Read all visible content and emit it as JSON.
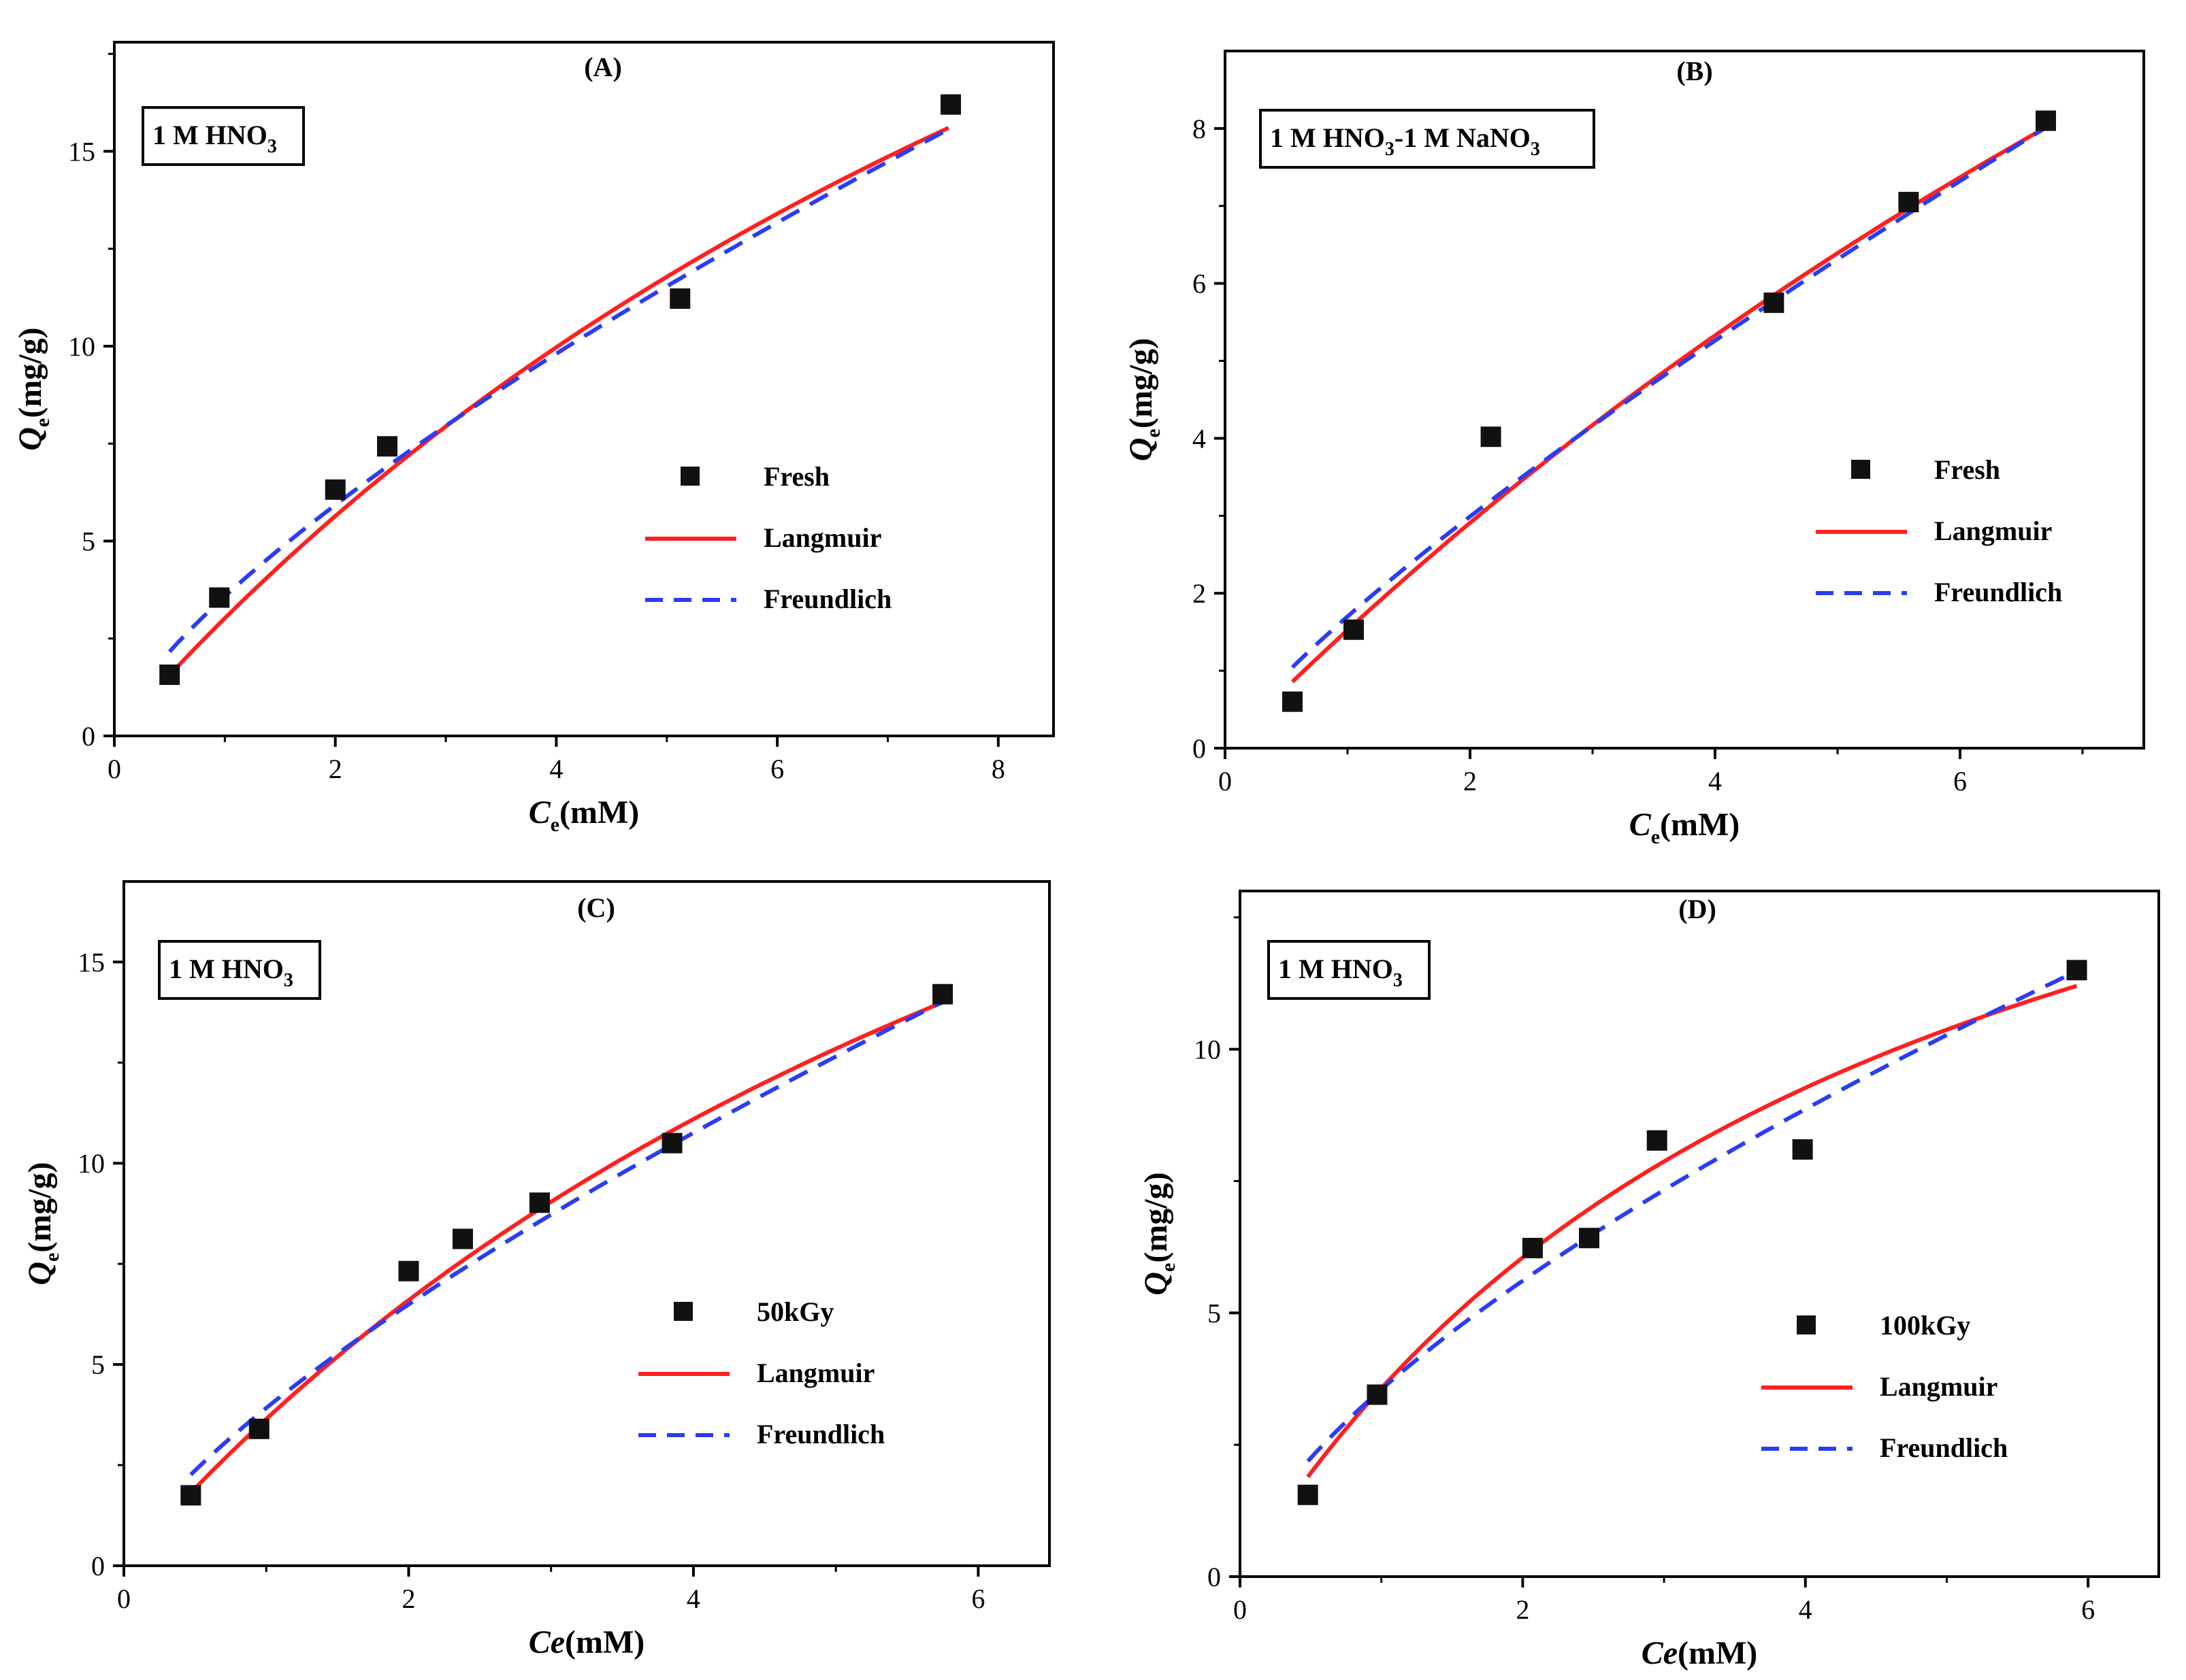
{
  "chart_data": [
    {
      "id": "A",
      "type": "scatter",
      "title": "(A)",
      "condition": {
        "main": "1 M HNO",
        "sub": "3",
        "rest": ""
      },
      "xlabel": {
        "main": "C",
        "sub": "e",
        "rest": "(mM)"
      },
      "ylabel": {
        "main": "Q",
        "sub": "e",
        "rest": "(mg/g)"
      },
      "xlim": [
        0,
        8.5
      ],
      "ylim": [
        0,
        17.8
      ],
      "xticks": [
        0,
        2,
        4,
        6,
        8
      ],
      "xtick_labels": [
        "0",
        "2",
        "4",
        "6",
        "8"
      ],
      "yticks": [
        0,
        5,
        10,
        15
      ],
      "ytick_labels": [
        "0",
        "5",
        "10",
        "15"
      ],
      "legend_labels": [
        "Fresh",
        "Langmuir",
        "Freundlich"
      ],
      "series": [
        {
          "name": "Fresh",
          "kind": "points",
          "x": [
            0.5,
            0.95,
            2.0,
            2.47,
            5.12,
            7.57
          ],
          "y": [
            1.57,
            3.55,
            6.32,
            7.43,
            11.22,
            16.2
          ]
        },
        {
          "name": "Langmuir",
          "kind": "line",
          "color": "#ff2020",
          "qmax": 42.9,
          "kl": 0.0757,
          "xrange": [
            0.5,
            7.55
          ]
        },
        {
          "name": "Freundlich",
          "kind": "dashed",
          "color": "#2b3df2",
          "kf": 3.58,
          "n": 0.727,
          "xrange": [
            0.5,
            7.55
          ]
        }
      ]
    },
    {
      "id": "B",
      "type": "scatter",
      "title": "(B)",
      "condition": {
        "main": "1 M HNO",
        "sub": "3",
        "rest": "-1 M NaNO",
        "sub2": "3"
      },
      "xlabel": {
        "main": "C",
        "sub": "e",
        "rest": "(mM)"
      },
      "ylabel": {
        "main": "Q",
        "sub": "e",
        "rest": "(mg/g)"
      },
      "xlim": [
        0,
        7.5
      ],
      "ylim": [
        0,
        9.0
      ],
      "xticks": [
        0,
        2,
        4,
        6
      ],
      "xtick_labels": [
        "0",
        "2",
        "4",
        "6"
      ],
      "yticks": [
        0,
        2,
        4,
        6,
        8
      ],
      "ytick_labels": [
        "0",
        "2",
        "4",
        "6",
        "8"
      ],
      "legend_labels": [
        "Fresh",
        "Langmuir",
        "Freundlich"
      ],
      "series": [
        {
          "name": "Fresh",
          "kind": "points",
          "x": [
            0.55,
            1.05,
            2.17,
            4.48,
            5.58,
            6.7
          ],
          "y": [
            0.6,
            1.53,
            4.02,
            5.75,
            7.05,
            8.1
          ]
        },
        {
          "name": "Langmuir",
          "kind": "line",
          "color": "#ff2020",
          "qmax": 31.6,
          "kl": 0.0507,
          "xrange": [
            0.55,
            6.68
          ]
        },
        {
          "name": "Freundlich",
          "kind": "dashed",
          "color": "#2b3df2",
          "kf": 1.7,
          "n": 0.815,
          "xrange": [
            0.55,
            6.68
          ]
        }
      ]
    },
    {
      "id": "C",
      "type": "scatter",
      "title": "(C)",
      "condition": {
        "main": "1 M HNO",
        "sub": "3",
        "rest": ""
      },
      "xlabel": {
        "main": "Ce",
        "sub": "",
        "rest": "(mM)"
      },
      "ylabel": {
        "main": "Q",
        "sub": "e",
        "rest": "(mg/g)"
      },
      "xlim": [
        0,
        6.5
      ],
      "ylim": [
        0,
        17.0
      ],
      "xticks": [
        0,
        2,
        4,
        6
      ],
      "xtick_labels": [
        "0",
        "2",
        "4",
        "6"
      ],
      "yticks": [
        0,
        5,
        10,
        15
      ],
      "ytick_labels": [
        "0",
        "5",
        "10",
        "15"
      ],
      "legend_labels": [
        "50kGy",
        "Langmuir",
        "Freundlich"
      ],
      "series": [
        {
          "name": "50kGy",
          "kind": "points",
          "x": [
            0.47,
            0.95,
            2.0,
            2.38,
            2.92,
            3.85,
            5.75
          ],
          "y": [
            1.75,
            3.4,
            7.32,
            8.12,
            9.02,
            10.5,
            14.2
          ]
        },
        {
          "name": "Langmuir",
          "kind": "line",
          "color": "#ff2020",
          "qmax": 34.8,
          "kl": 0.117,
          "xrange": [
            0.47,
            5.76
          ]
        },
        {
          "name": "Freundlich",
          "kind": "dashed",
          "color": "#2b3df2",
          "kf": 3.92,
          "n": 0.728,
          "xrange": [
            0.47,
            5.76
          ]
        }
      ]
    },
    {
      "id": "D",
      "type": "scatter",
      "title": "(D)",
      "condition": {
        "main": "1 M HNO",
        "sub": "3",
        "rest": ""
      },
      "xlabel": {
        "main": "Ce",
        "sub": "",
        "rest": "(mM)"
      },
      "ylabel": {
        "main": "Q",
        "sub": "e",
        "rest": "(mg/g)"
      },
      "xlim": [
        0,
        6.5
      ],
      "ylim": [
        0,
        13.0
      ],
      "xticks": [
        0,
        2,
        4,
        6
      ],
      "xtick_labels": [
        "0",
        "2",
        "4",
        "6"
      ],
      "yticks": [
        0,
        5,
        10
      ],
      "ytick_labels": [
        "0",
        "5",
        "10"
      ],
      "legend_labels": [
        "100kGy",
        "Langmuir",
        "Freundlich"
      ],
      "series": [
        {
          "name": "100kGy",
          "kind": "points",
          "x": [
            0.48,
            0.97,
            2.07,
            2.47,
            2.95,
            3.98,
            5.92
          ],
          "y": [
            1.55,
            3.45,
            6.23,
            6.42,
            8.27,
            8.1,
            11.5
          ]
        },
        {
          "name": "Langmuir",
          "kind": "line",
          "color": "#ff2020",
          "qmax": 19.8,
          "kl": 0.22,
          "xrange": [
            0.48,
            5.92
          ]
        },
        {
          "name": "Freundlich",
          "kind": "dashed",
          "color": "#2b3df2",
          "kf": 3.55,
          "n": 0.66,
          "xrange": [
            0.48,
            5.92
          ]
        }
      ]
    }
  ]
}
